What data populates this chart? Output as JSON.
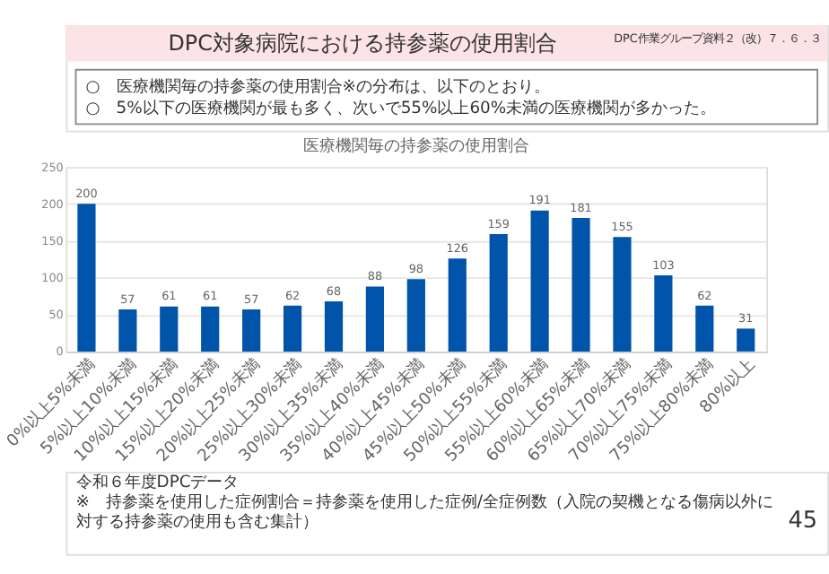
{
  "chart_data": {
    "type": "bar",
    "title": "医療機関毎の持参薬の使用割合",
    "categories": [
      "0%以上5%未満",
      "5%以上10%未満",
      "10%以上15%未満",
      "15%以上20%未満",
      "20%以上25%未満",
      "25%以上30%未満",
      "30%以上35%未満",
      "35%以上40%未満",
      "40%以上45%未満",
      "45%以上50%未満",
      "50%以上55%未満",
      "55%以上60%未満",
      "60%以上65%未満",
      "65%以上70%未満",
      "70%以上75%未満",
      "75%以上80%未満",
      "80%以上"
    ],
    "values": [
      200,
      57,
      61,
      61,
      57,
      62,
      68,
      88,
      98,
      126,
      159,
      191,
      181,
      155,
      103,
      62,
      31
    ],
    "color": "#0055aa",
    "ylim": [
      0,
      250
    ],
    "yticks": [
      0,
      50,
      100,
      150,
      200,
      250
    ],
    "grid": "y",
    "data_labels": true,
    "annotations": [
      "DPC対象病院における持参薬の使用割合",
      "DPC作業グループ資料２（改）７．６．３",
      "○　医療機関毎の持参薬の使用割合※の分布は、以下のとおり。",
      "○　5%以下の医療機関が最も多く、次いで55%以上60%未満の医療機関が多かった。",
      "令和６年度DPCデータ",
      "※　持参薬を使用した症例割合＝持参薬を使用した症例/全症例数（入院の契機となる傷病以外に対する持参薬の使用も含む集計）",
      "45"
    ]
  }
}
